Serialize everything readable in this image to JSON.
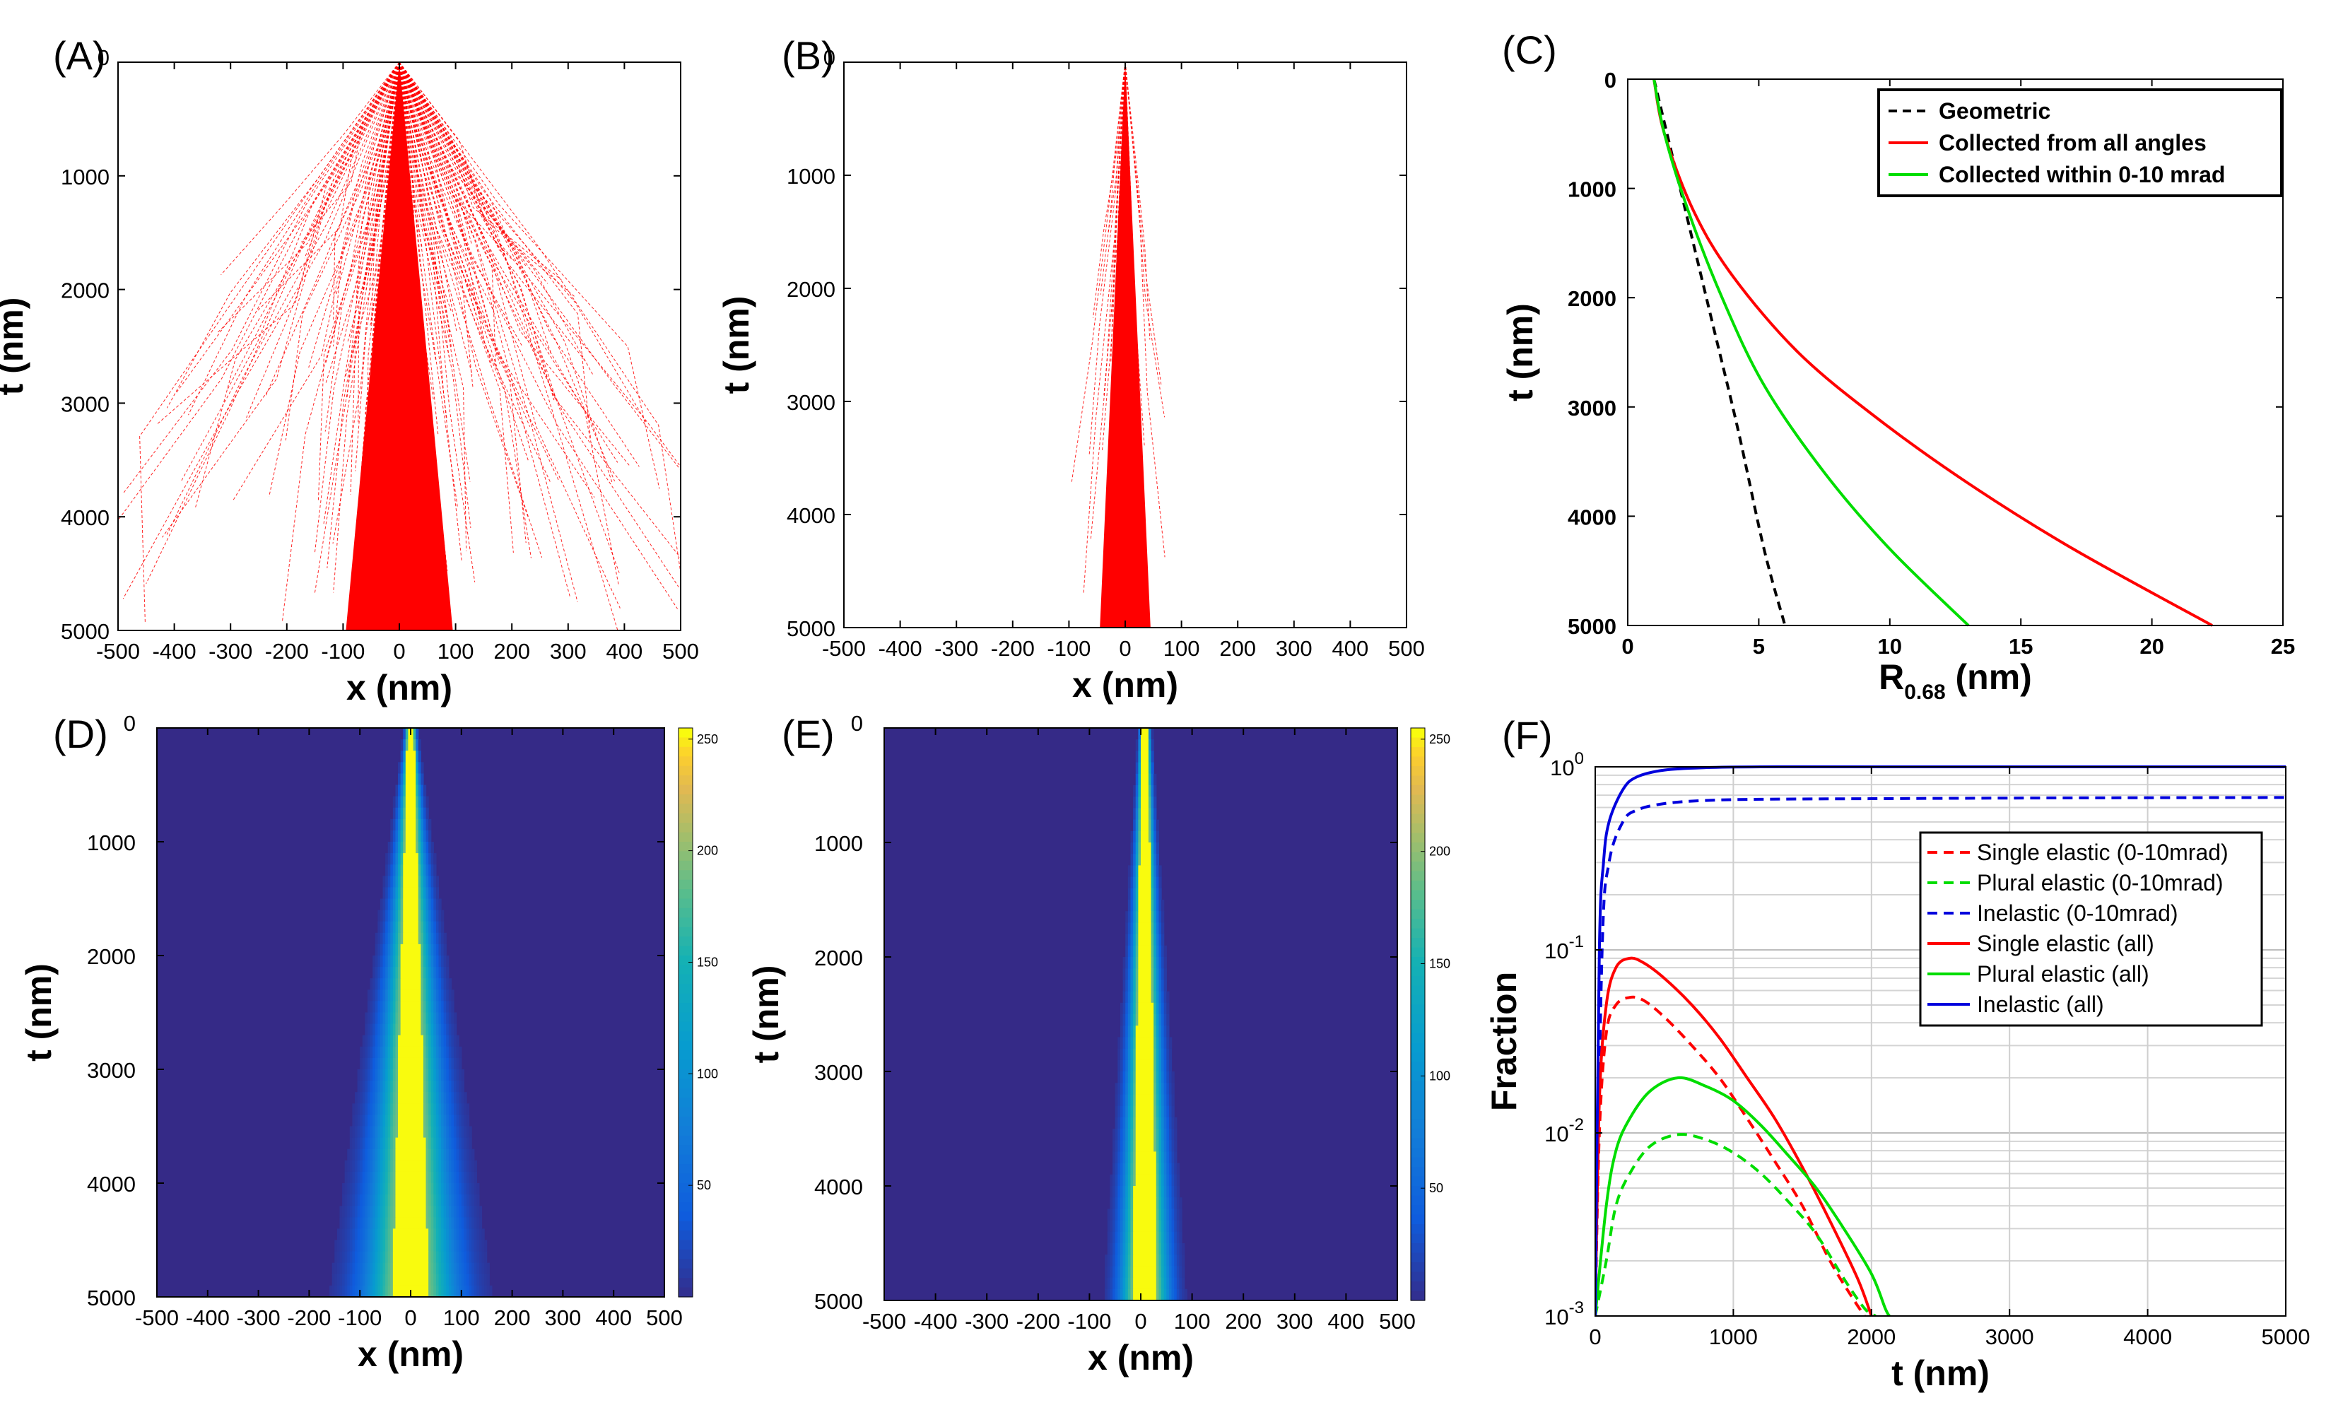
{
  "chart_data": [
    {
      "id": "A",
      "panel_label": "(A)",
      "type": "scatter",
      "xlabel": "x (nm)",
      "ylabel": "t (nm)",
      "xlim": [
        -500,
        500
      ],
      "ylim": [
        0,
        5000
      ],
      "y_reversed": true,
      "xticks": [
        -500,
        -400,
        -300,
        -200,
        -100,
        0,
        100,
        200,
        300,
        400,
        500
      ],
      "yticks": [
        0,
        1000,
        2000,
        3000,
        4000,
        5000
      ],
      "color": "#ff0000",
      "spread_at_bottom_nm": 95,
      "origin_x": 0
    },
    {
      "id": "B",
      "panel_label": "(B)",
      "type": "scatter",
      "xlabel": "x (nm)",
      "ylabel": "t (nm)",
      "xlim": [
        -500,
        500
      ],
      "ylim": [
        0,
        5000
      ],
      "y_reversed": true,
      "xticks": [
        -500,
        -400,
        -300,
        -200,
        -100,
        0,
        100,
        200,
        300,
        400,
        500
      ],
      "yticks": [
        0,
        1000,
        2000,
        3000,
        4000,
        5000
      ],
      "color": "#ff0000",
      "spread_at_bottom_nm": 45,
      "origin_x": 0
    },
    {
      "id": "C",
      "panel_label": "(C)",
      "type": "line",
      "xlabel": "R",
      "xlabel_sub": "0.68",
      "xlabel_unit": " (nm)",
      "ylabel": "t (nm)",
      "xlim": [
        0,
        25
      ],
      "ylim": [
        0,
        5000
      ],
      "y_reversed": true,
      "xticks": [
        0,
        5,
        10,
        15,
        20,
        25
      ],
      "yticks": [
        0,
        1000,
        2000,
        3000,
        4000,
        5000
      ],
      "legend_position": "top-right",
      "series": [
        {
          "name": "Geometric",
          "color": "#000000",
          "dash": "dashed",
          "x": [
            1.0,
            1.5,
            2.2,
            3.2,
            4.2,
            5.2,
            6.0
          ],
          "y": [
            0,
            500,
            1200,
            2200,
            3200,
            4300,
            5000
          ]
        },
        {
          "name": "Collected from all angles",
          "color": "#ff0000",
          "dash": "solid",
          "x": [
            1.0,
            1.4,
            2.5,
            4.0,
            6.5,
            9.5,
            13.0,
            17.0,
            22.3
          ],
          "y": [
            0,
            500,
            1200,
            1800,
            2500,
            3100,
            3700,
            4300,
            5000
          ]
        },
        {
          "name": "Collected within 0-10 mrad",
          "color": "#00dd00",
          "dash": "solid",
          "x": [
            1.0,
            1.4,
            2.3,
            3.6,
            5.2,
            7.5,
            10.0,
            13.0
          ],
          "y": [
            0,
            500,
            1200,
            2000,
            2800,
            3600,
            4300,
            5000
          ]
        }
      ]
    },
    {
      "id": "D",
      "panel_label": "(D)",
      "type": "heatmap",
      "xlabel": "x (nm)",
      "ylabel": "t (nm)",
      "xlim": [
        -500,
        500
      ],
      "ylim": [
        0,
        5000
      ],
      "y_reversed": true,
      "xticks": [
        -500,
        -400,
        -300,
        -200,
        -100,
        0,
        100,
        200,
        300,
        400,
        500
      ],
      "yticks": [
        0,
        1000,
        2000,
        3000,
        4000,
        5000
      ],
      "colorbar_ticks": [
        50,
        100,
        150,
        200,
        250
      ],
      "colorbar_range": [
        0,
        255
      ],
      "core_halfwidth_bottom_nm": 30,
      "halo_halfwidth_bottom_nm": 120
    },
    {
      "id": "E",
      "panel_label": "(E)",
      "type": "heatmap",
      "xlabel": "x (nm)",
      "ylabel": "t (nm)",
      "xlim": [
        -500,
        500
      ],
      "ylim": [
        0,
        5000
      ],
      "y_reversed": true,
      "xticks": [
        -500,
        -400,
        -300,
        -200,
        -100,
        0,
        100,
        200,
        300,
        400,
        500
      ],
      "yticks": [
        0,
        1000,
        2000,
        3000,
        4000,
        5000
      ],
      "colorbar_ticks": [
        50,
        100,
        150,
        200,
        250
      ],
      "colorbar_range": [
        0,
        255
      ],
      "core_halfwidth_bottom_nm": 18,
      "halo_halfwidth_bottom_nm": 50
    },
    {
      "id": "F",
      "panel_label": "(F)",
      "type": "line",
      "xlabel": "t (nm)",
      "ylabel": "Fraction",
      "xlim": [
        0,
        5000
      ],
      "ylim": [
        0.001,
        1
      ],
      "y_scale": "log",
      "grid": true,
      "xticks": [
        0,
        1000,
        2000,
        3000,
        4000,
        5000
      ],
      "yticks": [
        {
          "base": "10",
          "exp": "-3",
          "value": 0.001
        },
        {
          "base": "10",
          "exp": "-2",
          "value": 0.01
        },
        {
          "base": "10",
          "exp": "-1",
          "value": 0.1
        },
        {
          "base": "10",
          "exp": "0",
          "value": 1
        }
      ],
      "legend_position": "right",
      "series": [
        {
          "name": "Single elastic (0-10mrad)",
          "color": "#ff0000",
          "dash": "dashed",
          "x": [
            0,
            30,
            80,
            150,
            250,
            350,
            500,
            700,
            900,
            1100,
            1300,
            1500,
            1700,
            1850,
            1950
          ],
          "y": [
            0.001,
            0.01,
            0.035,
            0.05,
            0.055,
            0.053,
            0.043,
            0.03,
            0.02,
            0.012,
            0.007,
            0.004,
            0.002,
            0.0013,
            0.001
          ]
        },
        {
          "name": "Plural elastic (0-10mrad)",
          "color": "#00dd00",
          "dash": "dashed",
          "x": [
            0,
            80,
            150,
            250,
            400,
            600,
            800,
            1000,
            1200,
            1400,
            1600,
            1800,
            1950,
            2030
          ],
          "y": [
            0.001,
            0.002,
            0.004,
            0.006,
            0.0085,
            0.0098,
            0.0092,
            0.0078,
            0.006,
            0.0042,
            0.0028,
            0.0016,
            0.0011,
            0.001
          ]
        },
        {
          "name": "Inelastic (0-10mrad)",
          "color": "#0000dd",
          "dash": "dashed",
          "x": [
            0,
            50,
            100,
            200,
            300,
            500,
            800,
            1200,
            2000,
            3000,
            4000,
            5000
          ],
          "y": [
            0.001,
            0.1,
            0.3,
            0.5,
            0.58,
            0.63,
            0.655,
            0.665,
            0.67,
            0.675,
            0.678,
            0.68
          ]
        },
        {
          "name": "Single elastic (all)",
          "color": "#ff0000",
          "dash": "solid",
          "x": [
            0,
            30,
            80,
            150,
            250,
            350,
            500,
            700,
            900,
            1100,
            1300,
            1500,
            1700,
            1900,
            2000
          ],
          "y": [
            0.001,
            0.015,
            0.05,
            0.08,
            0.09,
            0.085,
            0.07,
            0.05,
            0.033,
            0.02,
            0.012,
            0.0065,
            0.0033,
            0.0016,
            0.001
          ]
        },
        {
          "name": "Plural elastic (all)",
          "color": "#00dd00",
          "dash": "solid",
          "x": [
            0,
            80,
            150,
            250,
            400,
            600,
            800,
            1000,
            1200,
            1400,
            1600,
            1800,
            2000,
            2100,
            2130
          ],
          "y": [
            0.001,
            0.004,
            0.008,
            0.012,
            0.017,
            0.02,
            0.018,
            0.015,
            0.011,
            0.0075,
            0.005,
            0.003,
            0.0017,
            0.0011,
            0.001
          ]
        },
        {
          "name": "Inelastic (all)",
          "color": "#0000dd",
          "dash": "solid",
          "x": [
            0,
            30,
            60,
            100,
            200,
            300,
            500,
            800,
            1200,
            2000,
            5000
          ],
          "y": [
            0.001,
            0.1,
            0.3,
            0.5,
            0.75,
            0.88,
            0.96,
            0.99,
            1,
            1,
            1
          ]
        }
      ]
    }
  ]
}
